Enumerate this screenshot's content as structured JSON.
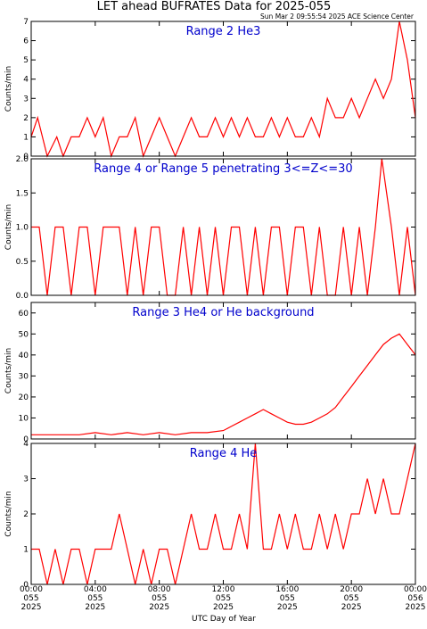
{
  "title": "LET ahead BUFRATES Data for 2025-055",
  "timestamp": "Sun Mar  2 09:55:54 2025 ACE Science Center",
  "xlabel": "UTC Day of Year",
  "colors": {
    "trace": "#ff0000",
    "panel_title": "#0000cc",
    "axes": "#000000"
  },
  "x_ticks": [
    {
      "time": "00:00",
      "doy": "055",
      "year": "2025"
    },
    {
      "time": "04:00",
      "doy": "055",
      "year": "2025"
    },
    {
      "time": "08:00",
      "doy": "055",
      "year": "2025"
    },
    {
      "time": "12:00",
      "doy": "055",
      "year": "2025"
    },
    {
      "time": "16:00",
      "doy": "055",
      "year": "2025"
    },
    {
      "time": "20:00",
      "doy": "055",
      "year": "2025"
    },
    {
      "time": "00:00",
      "doy": "056",
      "year": "2025"
    }
  ],
  "chart_data": [
    {
      "type": "line",
      "title": "Range 2 He3",
      "ylabel": "Counts/min",
      "xlim_hours": [
        0,
        24
      ],
      "ylim": [
        0,
        7
      ],
      "y_ticks": [
        "0",
        "1",
        "2",
        "3",
        "4",
        "5",
        "6",
        "7"
      ],
      "x": [
        0.0,
        0.4,
        1.0,
        1.6,
        2.0,
        2.5,
        3.0,
        3.5,
        4.0,
        4.5,
        5.0,
        5.5,
        6.0,
        6.5,
        7.0,
        7.5,
        8.0,
        8.5,
        9.0,
        9.5,
        10.0,
        10.5,
        11.0,
        11.5,
        12.0,
        12.5,
        13.0,
        13.5,
        14.0,
        14.5,
        15.0,
        15.5,
        16.0,
        16.5,
        17.0,
        17.5,
        18.0,
        18.5,
        19.0,
        19.5,
        20.0,
        20.5,
        21.0,
        21.5,
        22.0,
        22.5,
        23.0,
        23.5,
        24.0
      ],
      "values": [
        1,
        2,
        0,
        1,
        0,
        1,
        1,
        2,
        1,
        2,
        0,
        1,
        1,
        2,
        0,
        1,
        2,
        1,
        0,
        1,
        2,
        1,
        1,
        2,
        1,
        2,
        1,
        2,
        1,
        1,
        2,
        1,
        2,
        1,
        1,
        2,
        1,
        3,
        2,
        2,
        3,
        2,
        3,
        4,
        3,
        4,
        7,
        5,
        2
      ]
    },
    {
      "type": "line",
      "title": "Range 4 or Range 5 penetrating 3<=Z<=30",
      "ylabel": "Counts/min",
      "xlim_hours": [
        0,
        24
      ],
      "ylim": [
        0,
        2
      ],
      "y_ticks": [
        "0.0",
        "0.5",
        "1.0",
        "1.5",
        "2.0"
      ],
      "x": [
        0.0,
        0.5,
        1.0,
        1.5,
        2.0,
        2.5,
        3.0,
        3.5,
        4.0,
        4.5,
        5.0,
        5.5,
        6.0,
        6.5,
        7.0,
        7.5,
        8.0,
        8.5,
        9.0,
        9.5,
        10.0,
        10.5,
        11.0,
        11.5,
        12.0,
        12.5,
        13.0,
        13.5,
        14.0,
        14.5,
        15.0,
        15.5,
        16.0,
        16.5,
        17.0,
        17.5,
        18.0,
        18.5,
        19.0,
        19.5,
        20.0,
        20.5,
        21.0,
        21.5,
        21.9,
        22.5,
        23.0,
        23.5,
        24.0
      ],
      "values": [
        1,
        1,
        0,
        1,
        1,
        0,
        1,
        1,
        0,
        1,
        1,
        1,
        0,
        1,
        0,
        1,
        1,
        0,
        0,
        1,
        0,
        1,
        0,
        1,
        0,
        1,
        1,
        0,
        1,
        0,
        1,
        1,
        0,
        1,
        1,
        0,
        1,
        0,
        0,
        1,
        0,
        1,
        0,
        1,
        2,
        1,
        0,
        1,
        0
      ]
    },
    {
      "type": "line",
      "title": "Range 3 He4 or He background",
      "ylabel": "Counts/min",
      "xlim_hours": [
        0,
        24
      ],
      "ylim": [
        0,
        65
      ],
      "y_ticks": [
        "0",
        "10",
        "20",
        "30",
        "40",
        "50",
        "60"
      ],
      "x": [
        0,
        1,
        2,
        3,
        4,
        5,
        6,
        7,
        8,
        9,
        10,
        11,
        12,
        12.5,
        13,
        13.5,
        14,
        14.5,
        15,
        15.5,
        16,
        16.5,
        17,
        17.5,
        18,
        18.5,
        19,
        19.5,
        20,
        20.5,
        21,
        21.5,
        22,
        22.5,
        23,
        23.5,
        24
      ],
      "values": [
        2,
        2,
        2,
        2,
        3,
        2,
        3,
        2,
        3,
        2,
        3,
        3,
        4,
        6,
        8,
        10,
        12,
        14,
        12,
        10,
        8,
        7,
        7,
        8,
        10,
        12,
        15,
        20,
        25,
        30,
        35,
        40,
        45,
        48,
        50,
        45,
        40
      ]
    },
    {
      "type": "line",
      "title": "Range 4 He",
      "ylabel": "Counts/min",
      "xlim_hours": [
        0,
        24
      ],
      "ylim": [
        0,
        4
      ],
      "y_ticks": [
        "0",
        "1",
        "2",
        "3",
        "4"
      ],
      "x": [
        0.0,
        0.5,
        1.0,
        1.5,
        2.0,
        2.5,
        3.0,
        3.5,
        4.0,
        4.5,
        5.0,
        5.5,
        6.0,
        6.5,
        7.0,
        7.5,
        8.0,
        8.5,
        9.0,
        9.5,
        10.0,
        10.5,
        11.0,
        11.5,
        12.0,
        12.5,
        13.0,
        13.5,
        14.0,
        14.5,
        15.0,
        15.5,
        16.0,
        16.5,
        17.0,
        17.5,
        18.0,
        18.5,
        19.0,
        19.5,
        20.0,
        20.5,
        21.0,
        21.5,
        22.0,
        22.5,
        23.0,
        23.5,
        24.0
      ],
      "values": [
        1,
        1,
        0,
        1,
        0,
        1,
        1,
        0,
        1,
        1,
        1,
        2,
        1,
        0,
        1,
        0,
        1,
        1,
        0,
        1,
        2,
        1,
        1,
        2,
        1,
        1,
        2,
        1,
        4,
        1,
        1,
        2,
        1,
        2,
        1,
        1,
        2,
        1,
        2,
        1,
        2,
        2,
        3,
        2,
        3,
        2,
        2,
        3,
        4
      ]
    }
  ]
}
